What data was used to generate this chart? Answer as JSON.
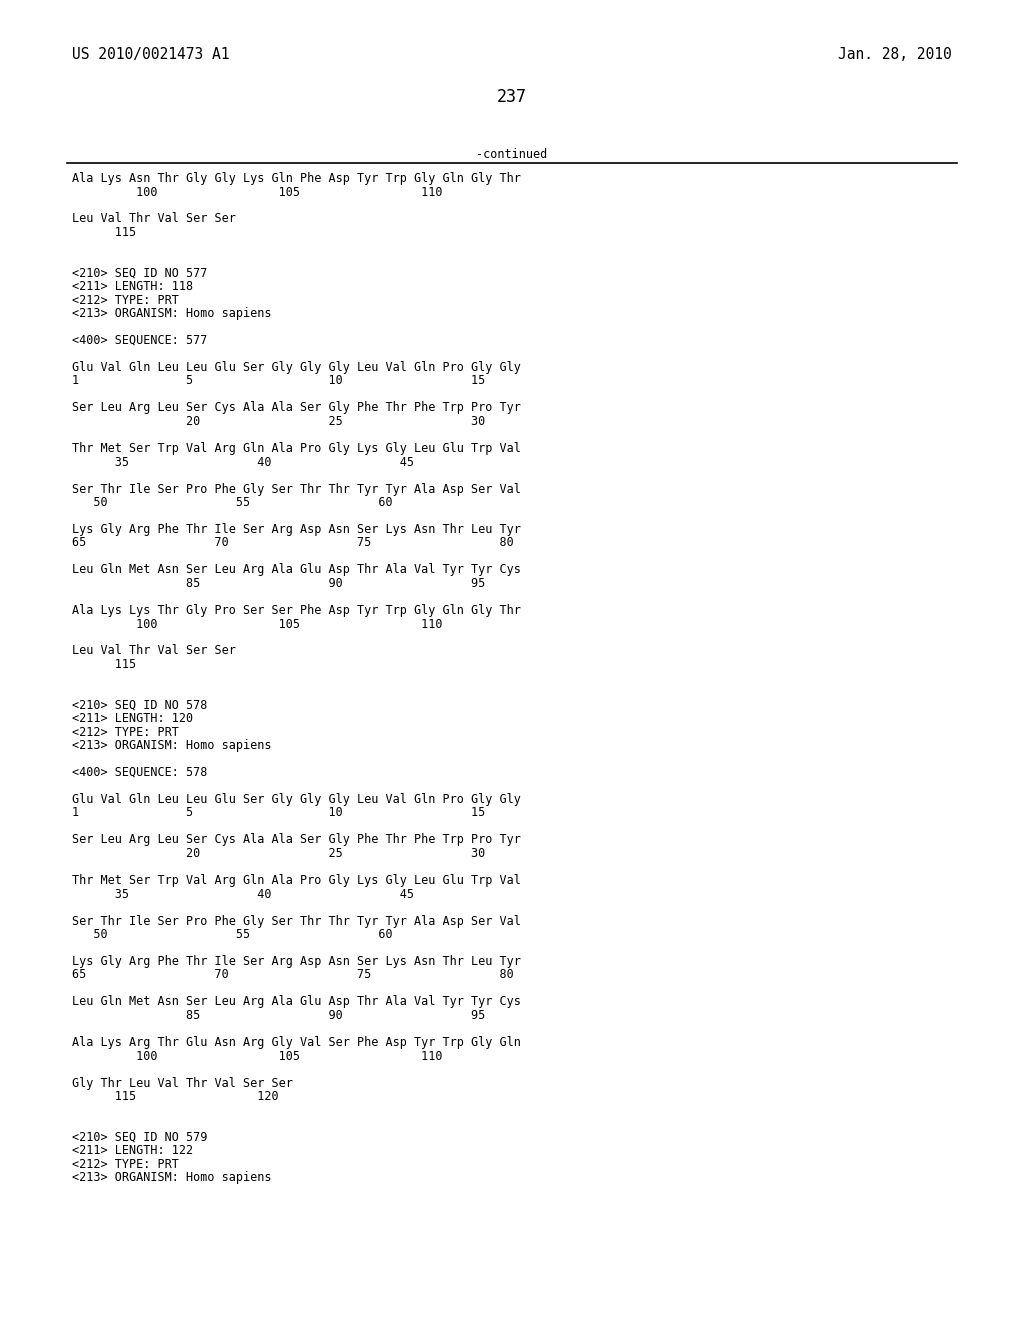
{
  "page_number": "237",
  "top_left": "US 2010/0021473 A1",
  "top_right": "Jan. 28, 2010",
  "continued_label": "-continued",
  "background_color": "#ffffff",
  "text_color": "#000000",
  "font_size_header": 10.5,
  "font_size_body": 8.5,
  "lines": [
    "Ala Lys Asn Thr Gly Gly Lys Gln Phe Asp Tyr Trp Gly Gln Gly Thr",
    "         100                 105                 110",
    "",
    "Leu Val Thr Val Ser Ser",
    "      115",
    "",
    "",
    "<210> SEQ ID NO 577",
    "<211> LENGTH: 118",
    "<212> TYPE: PRT",
    "<213> ORGANISM: Homo sapiens",
    "",
    "<400> SEQUENCE: 577",
    "",
    "Glu Val Gln Leu Leu Glu Ser Gly Gly Gly Leu Val Gln Pro Gly Gly",
    "1               5                   10                  15",
    "",
    "Ser Leu Arg Leu Ser Cys Ala Ala Ser Gly Phe Thr Phe Trp Pro Tyr",
    "                20                  25                  30",
    "",
    "Thr Met Ser Trp Val Arg Gln Ala Pro Gly Lys Gly Leu Glu Trp Val",
    "      35                  40                  45",
    "",
    "Ser Thr Ile Ser Pro Phe Gly Ser Thr Thr Tyr Tyr Ala Asp Ser Val",
    "   50                  55                  60",
    "",
    "Lys Gly Arg Phe Thr Ile Ser Arg Asp Asn Ser Lys Asn Thr Leu Tyr",
    "65                  70                  75                  80",
    "",
    "Leu Gln Met Asn Ser Leu Arg Ala Glu Asp Thr Ala Val Tyr Tyr Cys",
    "                85                  90                  95",
    "",
    "Ala Lys Lys Thr Gly Pro Ser Ser Phe Asp Tyr Trp Gly Gln Gly Thr",
    "         100                 105                 110",
    "",
    "Leu Val Thr Val Ser Ser",
    "      115",
    "",
    "",
    "<210> SEQ ID NO 578",
    "<211> LENGTH: 120",
    "<212> TYPE: PRT",
    "<213> ORGANISM: Homo sapiens",
    "",
    "<400> SEQUENCE: 578",
    "",
    "Glu Val Gln Leu Leu Glu Ser Gly Gly Gly Leu Val Gln Pro Gly Gly",
    "1               5                   10                  15",
    "",
    "Ser Leu Arg Leu Ser Cys Ala Ala Ser Gly Phe Thr Phe Trp Pro Tyr",
    "                20                  25                  30",
    "",
    "Thr Met Ser Trp Val Arg Gln Ala Pro Gly Lys Gly Leu Glu Trp Val",
    "      35                  40                  45",
    "",
    "Ser Thr Ile Ser Pro Phe Gly Ser Thr Thr Tyr Tyr Ala Asp Ser Val",
    "   50                  55                  60",
    "",
    "Lys Gly Arg Phe Thr Ile Ser Arg Asp Asn Ser Lys Asn Thr Leu Tyr",
    "65                  70                  75                  80",
    "",
    "Leu Gln Met Asn Ser Leu Arg Ala Glu Asp Thr Ala Val Tyr Tyr Cys",
    "                85                  90                  95",
    "",
    "Ala Lys Arg Thr Glu Asn Arg Gly Val Ser Phe Asp Tyr Trp Gly Gln",
    "         100                 105                 110",
    "",
    "Gly Thr Leu Val Thr Val Ser Ser",
    "      115                 120",
    "",
    "",
    "<210> SEQ ID NO 579",
    "<211> LENGTH: 122",
    "<212> TYPE: PRT",
    "<213> ORGANISM: Homo sapiens"
  ]
}
